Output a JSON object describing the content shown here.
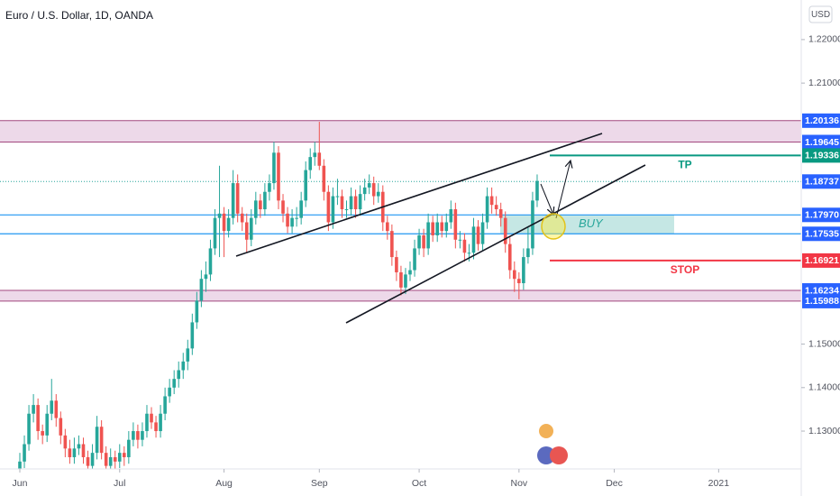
{
  "chart_data": {
    "type": "candlestick",
    "title": "Euro / U.S. Dollar, 1D, OANDA",
    "currency": "USD",
    "up_color": "#26a69a",
    "down_color": "#ef5350",
    "xlim": [
      -4.37,
      172.2
    ],
    "ylim": [
      1.1213,
      1.2291
    ],
    "xticks": [
      {
        "value": 0,
        "label": "Jun"
      },
      {
        "value": 22,
        "label": "Jul"
      },
      {
        "value": 45,
        "label": "Aug"
      },
      {
        "value": 66,
        "label": "Sep"
      },
      {
        "value": 88,
        "label": "Oct"
      },
      {
        "value": 110,
        "label": "Nov"
      },
      {
        "value": 131,
        "label": "Dec"
      },
      {
        "value": 154,
        "label": "2021"
      }
    ],
    "yticks": [
      {
        "value": 1.22,
        "label": "1.22000"
      },
      {
        "value": 1.21,
        "label": "1.21000"
      },
      {
        "value": 1.15,
        "label": "1.15000"
      },
      {
        "value": 1.14,
        "label": "1.14000"
      },
      {
        "value": 1.13,
        "label": "1.13000"
      }
    ],
    "zones": [
      {
        "top": 1.20136,
        "bottom": 1.19645,
        "color": "#e9cfe3",
        "line": "#a3487f",
        "tag": "#2962ff"
      },
      {
        "top": 1.16234,
        "bottom": 1.15988,
        "color": "#e9cfe3",
        "line": "#a3487f",
        "tag": "#2962ff"
      }
    ],
    "levels": [
      {
        "value": {
          "value": 1.1797,
          "label": "1.17970"
        },
        "color": "#2196f3"
      },
      {
        "value": 1.17535,
        "color": "#2196f3"
      }
    ],
    "buy_zone": {
      "label": "BUY",
      "color": "#b2dfdb"
    },
    "last_price": {
      "value": 1.18737,
      "color": "#26a69a",
      "tag": "#2962ff"
    },
    "targets": [
      {
        "name": "TP",
        "value": 1.19336,
        "color": "#089981"
      },
      {
        "name": "STOP",
        "value": 1.16921,
        "color": "#f23645"
      }
    ],
    "candles": [
      [
        1.12,
        1.125,
        1.1185,
        1.123
      ],
      [
        1.123,
        1.129,
        1.1215,
        1.127
      ],
      [
        1.127,
        1.136,
        1.1255,
        1.134
      ],
      [
        1.134,
        1.1385,
        1.132,
        1.136
      ],
      [
        1.136,
        1.1375,
        1.128,
        1.13
      ],
      [
        1.13,
        1.1315,
        1.127,
        1.129
      ],
      [
        1.129,
        1.136,
        1.1275,
        1.134
      ],
      [
        1.134,
        1.142,
        1.1325,
        1.137
      ],
      [
        1.137,
        1.1385,
        1.131,
        1.133
      ],
      [
        1.133,
        1.1345,
        1.127,
        1.129
      ],
      [
        1.129,
        1.1305,
        1.124,
        1.126
      ],
      [
        1.126,
        1.128,
        1.1225,
        1.124
      ],
      [
        1.124,
        1.1285,
        1.1225,
        1.126
      ],
      [
        1.126,
        1.129,
        1.1245,
        1.127
      ],
      [
        1.127,
        1.1285,
        1.1225,
        1.124
      ],
      [
        1.124,
        1.1255,
        1.12,
        1.122
      ],
      [
        1.122,
        1.127,
        1.1205,
        1.125
      ],
      [
        1.125,
        1.1335,
        1.1235,
        1.131
      ],
      [
        1.131,
        1.1325,
        1.1235,
        1.125
      ],
      [
        1.125,
        1.1265,
        1.12,
        1.122
      ],
      [
        1.122,
        1.126,
        1.1205,
        1.124
      ],
      [
        1.124,
        1.1255,
        1.121,
        1.123
      ],
      [
        1.123,
        1.127,
        1.1215,
        1.125
      ],
      [
        1.125,
        1.1265,
        1.122,
        1.124
      ],
      [
        1.124,
        1.13,
        1.1225,
        1.128
      ],
      [
        1.128,
        1.132,
        1.1265,
        1.13
      ],
      [
        1.13,
        1.1315,
        1.126,
        1.128
      ],
      [
        1.128,
        1.132,
        1.1265,
        1.13
      ],
      [
        1.13,
        1.136,
        1.1285,
        1.134
      ],
      [
        1.134,
        1.1355,
        1.1305,
        1.132
      ],
      [
        1.132,
        1.1335,
        1.1285,
        1.13
      ],
      [
        1.13,
        1.136,
        1.1285,
        1.134
      ],
      [
        1.134,
        1.14,
        1.1325,
        1.138
      ],
      [
        1.138,
        1.142,
        1.1365,
        1.14
      ],
      [
        1.14,
        1.144,
        1.1385,
        1.142
      ],
      [
        1.142,
        1.146,
        1.14,
        1.144
      ],
      [
        1.144,
        1.148,
        1.142,
        1.146
      ],
      [
        1.146,
        1.151,
        1.144,
        1.149
      ],
      [
        1.149,
        1.157,
        1.1475,
        1.155
      ],
      [
        1.155,
        1.162,
        1.1535,
        1.16
      ],
      [
        1.16,
        1.167,
        1.1585,
        1.165
      ],
      [
        1.165,
        1.169,
        1.162,
        1.166
      ],
      [
        1.166,
        1.174,
        1.1645,
        1.172
      ],
      [
        1.172,
        1.181,
        1.1705,
        1.179
      ],
      [
        1.179,
        1.191,
        1.17,
        1.18
      ],
      [
        1.18,
        1.1815,
        1.17,
        1.176
      ],
      [
        1.176,
        1.181,
        1.1745,
        1.179
      ],
      [
        1.179,
        1.19,
        1.1775,
        1.187
      ],
      [
        1.187,
        1.189,
        1.178,
        1.18
      ],
      [
        1.18,
        1.1815,
        1.176,
        1.178
      ],
      [
        1.178,
        1.18,
        1.171,
        1.174
      ],
      [
        1.174,
        1.181,
        1.1725,
        1.179
      ],
      [
        1.179,
        1.185,
        1.1775,
        1.183
      ],
      [
        1.183,
        1.1845,
        1.179,
        1.181
      ],
      [
        1.181,
        1.187,
        1.1795,
        1.185
      ],
      [
        1.185,
        1.189,
        1.183,
        1.187
      ],
      [
        1.187,
        1.1965,
        1.1855,
        1.194
      ],
      [
        1.194,
        1.1955,
        1.181,
        1.183
      ],
      [
        1.183,
        1.1845,
        1.178,
        1.18
      ],
      [
        1.18,
        1.1815,
        1.1755,
        1.177
      ],
      [
        1.177,
        1.181,
        1.1755,
        1.179
      ],
      [
        1.179,
        1.1815,
        1.177,
        1.179
      ],
      [
        1.179,
        1.185,
        1.1775,
        1.183
      ],
      [
        1.183,
        1.192,
        1.1815,
        1.19
      ],
      [
        1.19,
        1.195,
        1.188,
        1.193
      ],
      [
        1.193,
        1.1965,
        1.191,
        1.194
      ],
      [
        1.194,
        1.2011,
        1.19,
        1.191
      ],
      [
        1.191,
        1.1925,
        1.183,
        1.185
      ],
      [
        1.185,
        1.1865,
        1.176,
        1.178
      ],
      [
        1.178,
        1.186,
        1.1765,
        1.184
      ],
      [
        1.184,
        1.188,
        1.182,
        1.184
      ],
      [
        1.184,
        1.1855,
        1.179,
        1.181
      ],
      [
        1.181,
        1.183,
        1.179,
        1.181
      ],
      [
        1.181,
        1.186,
        1.1795,
        1.184
      ],
      [
        1.184,
        1.1855,
        1.179,
        1.181
      ],
      [
        1.181,
        1.1865,
        1.1795,
        1.1845
      ],
      [
        1.1845,
        1.188,
        1.183,
        1.186
      ],
      [
        1.186,
        1.189,
        1.1845,
        1.187
      ],
      [
        1.187,
        1.1885,
        1.182,
        1.184
      ],
      [
        1.184,
        1.187,
        1.1825,
        1.185
      ],
      [
        1.185,
        1.1865,
        1.176,
        1.178
      ],
      [
        1.178,
        1.1795,
        1.174,
        1.176
      ],
      [
        1.176,
        1.1775,
        1.168,
        1.17
      ],
      [
        1.17,
        1.1715,
        1.1645,
        1.1665
      ],
      [
        1.1665,
        1.168,
        1.1612,
        1.163
      ],
      [
        1.163,
        1.1675,
        1.1615,
        1.166
      ],
      [
        1.166,
        1.169,
        1.1645,
        1.167
      ],
      [
        1.167,
        1.174,
        1.1655,
        1.172
      ],
      [
        1.172,
        1.1765,
        1.1705,
        1.175
      ],
      [
        1.175,
        1.1765,
        1.17,
        1.172
      ],
      [
        1.172,
        1.18,
        1.1705,
        1.178
      ],
      [
        1.178,
        1.1795,
        1.1735,
        1.175
      ],
      [
        1.175,
        1.18,
        1.1735,
        1.178
      ],
      [
        1.178,
        1.1795,
        1.1745,
        1.176
      ],
      [
        1.176,
        1.18,
        1.1745,
        1.178
      ],
      [
        1.178,
        1.183,
        1.1765,
        1.181
      ],
      [
        1.181,
        1.1825,
        1.172,
        1.174
      ],
      [
        1.174,
        1.176,
        1.172,
        1.174
      ],
      [
        1.174,
        1.1755,
        1.169,
        1.171
      ],
      [
        1.171,
        1.173,
        1.169,
        1.171
      ],
      [
        1.171,
        1.179,
        1.1695,
        1.177
      ],
      [
        1.177,
        1.1785,
        1.1715,
        1.173
      ],
      [
        1.173,
        1.18,
        1.1715,
        1.178
      ],
      [
        1.178,
        1.186,
        1.1765,
        1.184
      ],
      [
        1.184,
        1.186,
        1.18,
        1.182
      ],
      [
        1.182,
        1.184,
        1.1795,
        1.181
      ],
      [
        1.181,
        1.1825,
        1.177,
        1.179
      ],
      [
        1.179,
        1.1805,
        1.171,
        1.173
      ],
      [
        1.173,
        1.1745,
        1.165,
        1.167
      ],
      [
        1.167,
        1.169,
        1.162,
        1.165
      ],
      [
        1.165,
        1.1665,
        1.1603,
        1.164
      ],
      [
        1.164,
        1.172,
        1.1625,
        1.17
      ],
      [
        1.17,
        1.177,
        1.1685,
        1.172
      ],
      [
        1.172,
        1.185,
        1.1705,
        1.183
      ],
      [
        1.183,
        1.189,
        1.1815,
        1.1875
      ]
    ]
  }
}
